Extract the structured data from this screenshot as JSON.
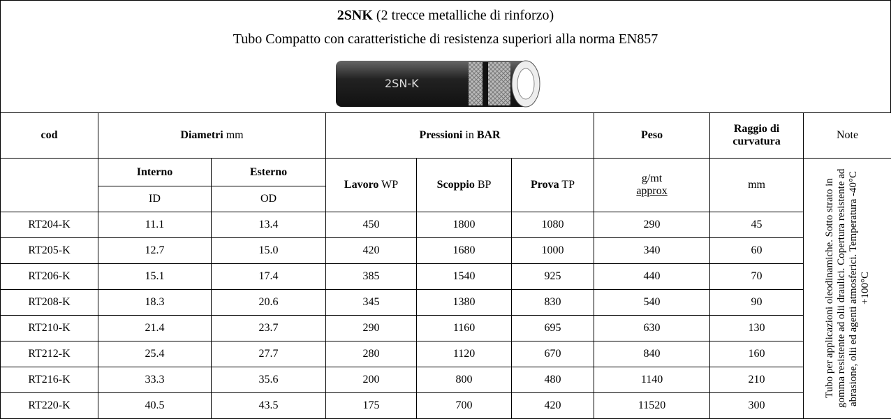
{
  "header": {
    "title_bold": "2SNK",
    "title_rest": "(2 trecce metalliche di rinforzo)",
    "subtitle": "Tubo Compatto con caratteristiche di resistenza superiori alla norma EN857",
    "image_label": "2SN-K"
  },
  "table": {
    "head1": {
      "cod": "cod",
      "diametri_bold": "Diametri",
      "diametri_unit": "mm",
      "pressioni_bold": "Pressioni",
      "pressioni_in": "in",
      "pressioni_unit": "BAR",
      "peso": "Peso",
      "raggio": "Raggio di curvatura",
      "note": "Note"
    },
    "head2": {
      "interno": "Interno",
      "esterno": "Esterno",
      "lavoro_bold": "Lavoro",
      "lavoro_abbr": "WP",
      "scoppio_bold": "Scoppio",
      "scoppio_abbr": "BP",
      "prova_bold": "Prova",
      "prova_abbr": "TP",
      "peso_unit": "g/mt",
      "peso_approx": "approx",
      "raggio_unit": "mm"
    },
    "head3": {
      "id": "ID",
      "od": "OD"
    },
    "note_text": "Tubo per applicazioni oleodinamiche. Sotto strato in gomma resistente ad olii draulici. Copertura resistente ad abrasione, olii ed agenti atmosferici. Temperatura -40°C +100°C",
    "rows": [
      [
        "RT204-K",
        "11.1",
        "13.4",
        "450",
        "1800",
        "1080",
        "290",
        "45"
      ],
      [
        "RT205-K",
        "12.7",
        "15.0",
        "420",
        "1680",
        "1000",
        "340",
        "60"
      ],
      [
        "RT206-K",
        "15.1",
        "17.4",
        "385",
        "1540",
        "925",
        "440",
        "70"
      ],
      [
        "RT208-K",
        "18.3",
        "20.6",
        "345",
        "1380",
        "830",
        "540",
        "90"
      ],
      [
        "RT210-K",
        "21.4",
        "23.7",
        "290",
        "1160",
        "695",
        "630",
        "130"
      ],
      [
        "RT212-K",
        "25.4",
        "27.7",
        "280",
        "1120",
        "670",
        "840",
        "160"
      ],
      [
        "RT216-K",
        "33.3",
        "35.6",
        "200",
        "800",
        "480",
        "1140",
        "210"
      ],
      [
        "RT220-K",
        "40.5",
        "43.5",
        "175",
        "700",
        "420",
        "11520",
        "300"
      ]
    ]
  }
}
